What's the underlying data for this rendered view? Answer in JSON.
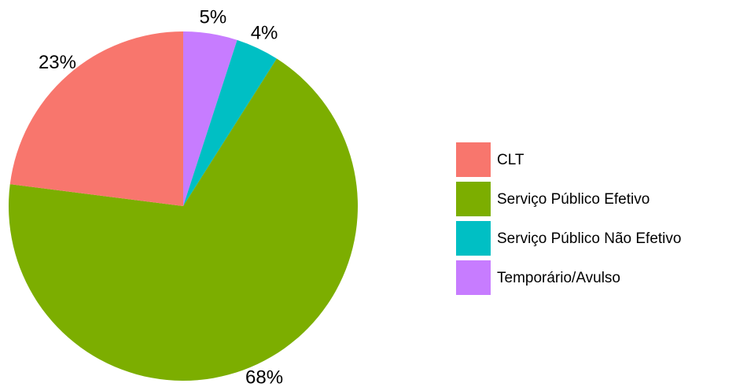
{
  "chart_data": {
    "type": "pie",
    "categories": [
      "CLT",
      "Serviço Público Efetivo",
      "Serviço Público Não Efetivo",
      "Temporário/Avulso"
    ],
    "values": [
      23,
      68,
      4,
      5
    ],
    "value_labels": [
      "23%",
      "68%",
      "4%",
      "5%"
    ],
    "colors": [
      "#F8766D",
      "#7CAE00",
      "#00BFC4",
      "#C77CFF"
    ],
    "legend": "right"
  }
}
